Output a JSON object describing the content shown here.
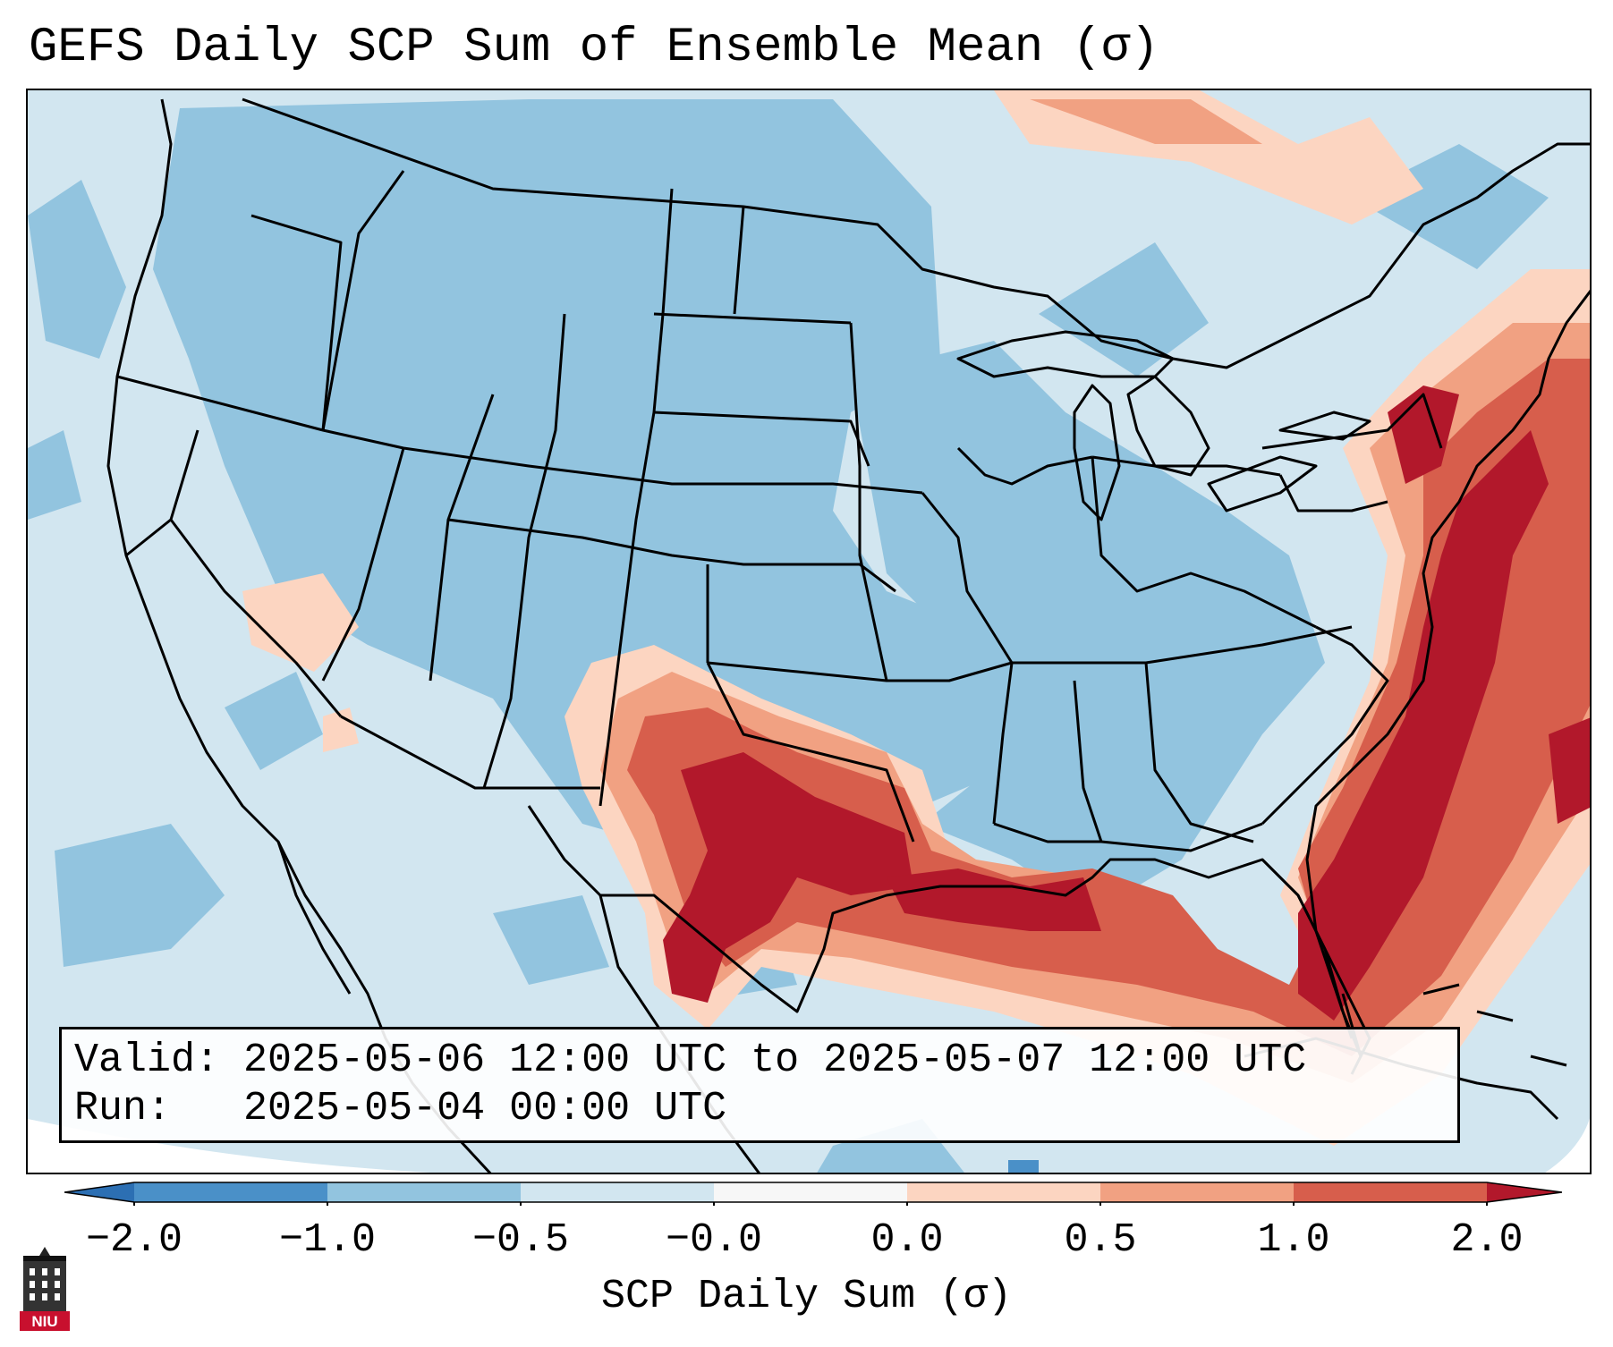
{
  "title": "GEFS Daily SCP Sum of Ensemble Mean (σ)",
  "info": {
    "valid_label": "Valid:",
    "valid_value": "2025-05-06 12:00 UTC to 2025-05-07 12:00 UTC",
    "run_label": "Run:",
    "run_value": "2025-05-04 00:00 UTC"
  },
  "colorbar": {
    "label": "SCP Daily Sum (σ)",
    "ticks": [
      "−2.0",
      "−1.0",
      "−0.5",
      "−0.0",
      "0.0",
      "0.5",
      "1.0",
      "2.0"
    ],
    "colors": {
      "below_min": "#2c6fb3",
      "minus2_to_minus1": "#4a90c8",
      "minus1_to_minus05": "#92c4df",
      "minus05_to_0": "#d2e6f0",
      "zero_band": "#f7f7f7",
      "zero_to_05": "#fcd5c1",
      "half_to_1": "#f1a182",
      "one_to_2": "#d75e4c",
      "above_max": "#b2182b"
    }
  },
  "map": {
    "region": "Contiguous United States",
    "features": [
      "state boundaries",
      "coastlines",
      "Great Lakes"
    ],
    "highlights": [
      {
        "area": "Texas / southern Plains",
        "level": "above 2.0"
      },
      {
        "area": "Gulf of Mexico coast",
        "level": "1.0 to 2.0"
      },
      {
        "area": "Mid-Atlantic / Northeast",
        "level": "above 2.0"
      },
      {
        "area": "Florida / western Atlantic",
        "level": "above 2.0"
      },
      {
        "area": "Northwest and central US",
        "level": "-1.0 to -0.5"
      }
    ]
  },
  "logo": {
    "text": "NIU",
    "icon": "university-tower-icon"
  }
}
